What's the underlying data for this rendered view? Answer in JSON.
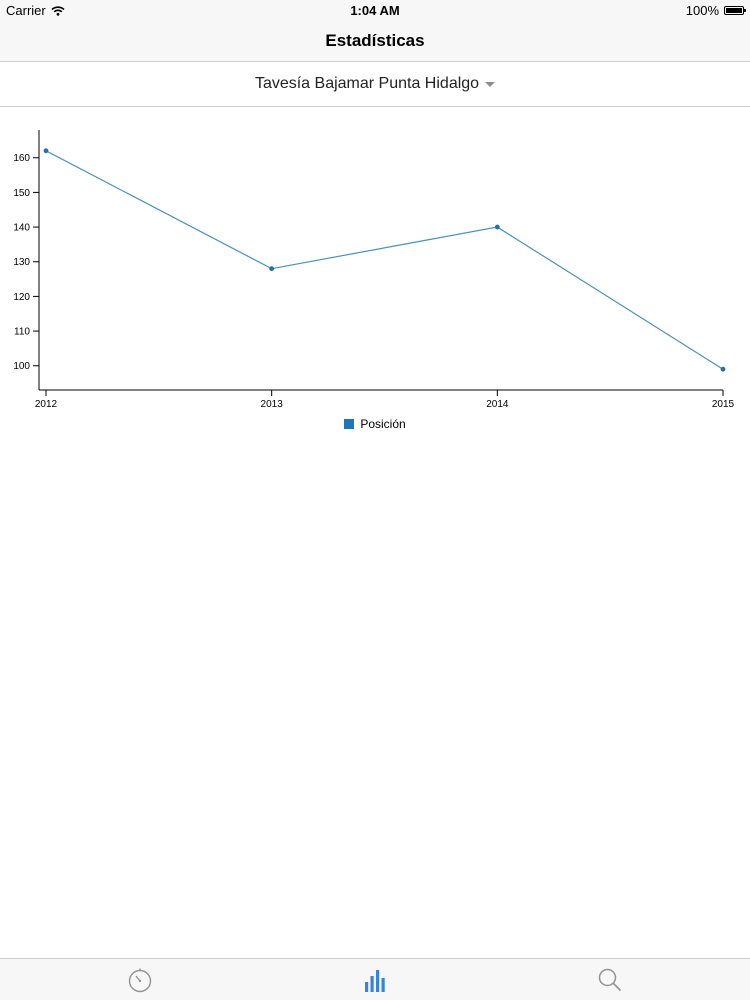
{
  "status_bar": {
    "carrier": "Carrier",
    "time": "1:04 AM",
    "battery": "100%"
  },
  "nav": {
    "title": "Estadísticas"
  },
  "selector": {
    "label": "Tavesía Bajamar Punta Hidalgo"
  },
  "chart_data": {
    "type": "line",
    "x": [
      "2012",
      "2013",
      "2014",
      "2015"
    ],
    "series": [
      {
        "name": "Posición",
        "values": [
          162,
          128,
          140,
          99
        ],
        "color": "#4a90b8"
      }
    ],
    "yticks": [
      100,
      110,
      120,
      130,
      140,
      150,
      160
    ],
    "ylim": [
      93,
      168
    ],
    "grid": false,
    "legend_position": "bottom-center"
  },
  "legend": {
    "label": "Posición",
    "color": "#1f77b4"
  },
  "tabs": [
    {
      "icon": "stopwatch-icon",
      "active": false
    },
    {
      "icon": "bar-chart-icon",
      "active": true
    },
    {
      "icon": "search-icon",
      "active": false
    }
  ],
  "colors": {
    "accent": "#3b83d9",
    "inactive": "#929292"
  }
}
